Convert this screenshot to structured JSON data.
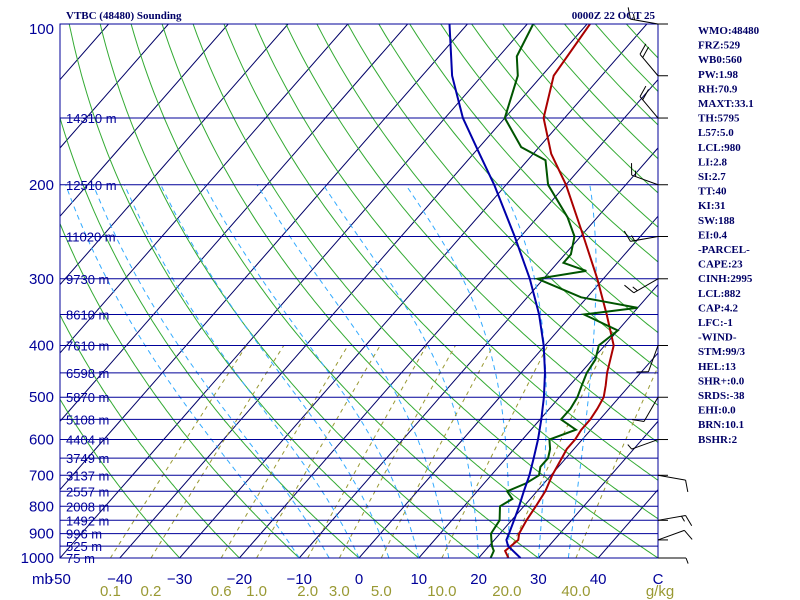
{
  "header": {
    "station": "VTBC (48480) Sounding",
    "time": "0000Z 22 OCT 25"
  },
  "indices": [
    "WMO:48480",
    "FRZ:529",
    "WB0:560",
    "PW:1.98",
    "RH:70.9",
    "MAXT:33.1",
    "TH:5795",
    "L57:5.0",
    "LCL:980",
    "LI:2.8",
    "SI:2.7",
    "TT:40",
    "KI:31",
    "SW:188",
    "EI:0.4",
    "-PARCEL-",
    "CAPE:23",
    "CINH:2995",
    "LCL:882",
    "CAP:4.2",
    "LFC:-1",
    "-WIND-",
    "STM:99/3",
    "HEL:13",
    "SHR+:0.0",
    "SRDS:-38",
    "EHI:0.0",
    "BRN:10.1",
    "BSHR:2"
  ],
  "colors": {
    "frame": "#000099",
    "isobar": "#000099",
    "isotherm": "#000066",
    "dry_adiabat": "#33aa33",
    "moist_adiabat": "#33aaff",
    "mixing_ratio": "#999933",
    "temperature": "#aa0000",
    "dewpoint": "#005500",
    "parcel": "#0000aa",
    "wind": "#000000"
  },
  "chart_data": {
    "type": "line",
    "title": "VTBC (48480) Sounding 0000Z 22 OCT 25",
    "skew_factor": 0.9,
    "pressure_range": [
      1000,
      100
    ],
    "temp_range": [
      -50,
      50
    ],
    "pressure_labels": [
      {
        "p": 100,
        "label": "100"
      },
      {
        "p": 200,
        "label": "200"
      },
      {
        "p": 300,
        "label": "300"
      },
      {
        "p": 400,
        "label": "400"
      },
      {
        "p": 500,
        "label": "500"
      },
      {
        "p": 600,
        "label": "600"
      },
      {
        "p": 700,
        "label": "700"
      },
      {
        "p": 800,
        "label": "800"
      },
      {
        "p": 900,
        "label": "900"
      },
      {
        "p": 1000,
        "label": "1000"
      }
    ],
    "heights": [
      {
        "p": 150,
        "label": "14310 m"
      },
      {
        "p": 200,
        "label": "12510 m"
      },
      {
        "p": 250,
        "label": "11020 m"
      },
      {
        "p": 300,
        "label": "9730 m"
      },
      {
        "p": 350,
        "label": "8610 m"
      },
      {
        "p": 400,
        "label": "7610 m"
      },
      {
        "p": 450,
        "label": "6598 m"
      },
      {
        "p": 500,
        "label": "5870 m"
      },
      {
        "p": 550,
        "label": "5108 m"
      },
      {
        "p": 600,
        "label": "4404 m"
      },
      {
        "p": 650,
        "label": "3749 m"
      },
      {
        "p": 700,
        "label": "3137 m"
      },
      {
        "p": 750,
        "label": "2557 m"
      },
      {
        "p": 800,
        "label": "2008 m"
      },
      {
        "p": 850,
        "label": "1492 m"
      },
      {
        "p": 900,
        "label": "996 m"
      },
      {
        "p": 950,
        "label": "525 m"
      },
      {
        "p": 1000,
        "label": "75 m"
      }
    ],
    "xlabel_unit": "mb",
    "temp_ticks": [
      {
        "t": -50,
        "label": "-50"
      },
      {
        "t": -40,
        "label": "−40"
      },
      {
        "t": -30,
        "label": "−30"
      },
      {
        "t": -20,
        "label": "−20"
      },
      {
        "t": -10,
        "label": "−10"
      },
      {
        "t": 0,
        "label": "0"
      },
      {
        "t": 10,
        "label": "10"
      },
      {
        "t": 20,
        "label": "20"
      },
      {
        "t": 30,
        "label": "30"
      },
      {
        "t": 40,
        "label": "40"
      },
      {
        "t": 50,
        "label": "C"
      }
    ],
    "mixing_ratio_unit": "g/kg",
    "mixing_ratios": [
      {
        "w": 0.1,
        "label": "0.1"
      },
      {
        "w": 0.2,
        "label": "0.2"
      },
      {
        "w": 0.6,
        "label": "0.6"
      },
      {
        "w": 1.0,
        "label": "1.0"
      },
      {
        "w": 2.0,
        "label": "2.0"
      },
      {
        "w": 3.0,
        "label": "3.0"
      },
      {
        "w": 5.0,
        "label": "5.0"
      },
      {
        "w": 10.0,
        "label": "10.0"
      },
      {
        "w": 20.0,
        "label": "20.0"
      },
      {
        "w": 40.0,
        "label": "40.0"
      }
    ],
    "series": [
      {
        "name": "Temperature",
        "points": [
          [
            1000,
            25
          ],
          [
            970,
            23.4
          ],
          [
            925,
            24
          ],
          [
            900,
            23.2
          ],
          [
            850,
            22.5
          ],
          [
            800,
            22
          ],
          [
            750,
            21.4
          ],
          [
            700,
            20.2
          ],
          [
            650,
            19.3
          ],
          [
            625,
            18.8
          ],
          [
            600,
            18.8
          ],
          [
            575,
            18.4
          ],
          [
            550,
            18.4
          ],
          [
            525,
            18
          ],
          [
            500,
            17.4
          ],
          [
            475,
            16
          ],
          [
            450,
            14.4
          ],
          [
            400,
            11.5
          ],
          [
            350,
            5.8
          ],
          [
            300,
            -1
          ],
          [
            250,
            -9.5
          ],
          [
            200,
            -20
          ],
          [
            175,
            -27
          ],
          [
            150,
            -33.5
          ],
          [
            125,
            -38
          ],
          [
            100,
            -39.5
          ]
        ]
      },
      {
        "name": "Dewpoint",
        "points": [
          [
            1000,
            22
          ],
          [
            970,
            21.5
          ],
          [
            950,
            20.5
          ],
          [
            925,
            19.5
          ],
          [
            900,
            18.5
          ],
          [
            850,
            18
          ],
          [
            800,
            16
          ],
          [
            775,
            17
          ],
          [
            750,
            15
          ],
          [
            725,
            17
          ],
          [
            700,
            18
          ],
          [
            675,
            17
          ],
          [
            650,
            17
          ],
          [
            625,
            16
          ],
          [
            600,
            14.5
          ],
          [
            575,
            17.5
          ],
          [
            550,
            13.5
          ],
          [
            525,
            13.5
          ],
          [
            500,
            13
          ],
          [
            475,
            12
          ],
          [
            450,
            11
          ],
          [
            425,
            10.5
          ],
          [
            400,
            9
          ],
          [
            375,
            10
          ],
          [
            350,
            2
          ],
          [
            340,
            10
          ],
          [
            325,
            -1
          ],
          [
            300,
            -11
          ],
          [
            290,
            -4
          ],
          [
            280,
            -9
          ],
          [
            270,
            -9
          ],
          [
            250,
            -11
          ],
          [
            230,
            -15
          ],
          [
            200,
            -23
          ],
          [
            180,
            -27
          ],
          [
            170,
            -33
          ],
          [
            150,
            -40
          ],
          [
            125,
            -44
          ],
          [
            115,
            -47
          ],
          [
            100,
            -49
          ]
        ]
      },
      {
        "name": "Parcel",
        "points": [
          [
            1000,
            27
          ],
          [
            950,
            23.2
          ],
          [
            925,
            22
          ],
          [
            900,
            21.5
          ],
          [
            850,
            20.4
          ],
          [
            800,
            19.2
          ],
          [
            750,
            17.8
          ],
          [
            700,
            16.4
          ],
          [
            650,
            14.6
          ],
          [
            600,
            12.6
          ],
          [
            550,
            10.2
          ],
          [
            500,
            7.4
          ],
          [
            450,
            4.0
          ],
          [
            400,
            -0.2
          ],
          [
            350,
            -5.5
          ],
          [
            300,
            -12.3
          ],
          [
            250,
            -21.0
          ],
          [
            200,
            -32.0
          ],
          [
            175,
            -39.0
          ],
          [
            150,
            -47.0
          ],
          [
            125,
            -55.0
          ],
          [
            100,
            -63.0
          ]
        ]
      }
    ],
    "wind_barbs": [
      {
        "p": 1000,
        "dir": 90,
        "kt": 5
      },
      {
        "p": 925,
        "dir": 70,
        "kt": 10
      },
      {
        "p": 850,
        "dir": 80,
        "kt": 15
      },
      {
        "p": 700,
        "dir": 100,
        "kt": 10
      },
      {
        "p": 600,
        "dir": 250,
        "kt": 5
      },
      {
        "p": 500,
        "dir": 210,
        "kt": 10
      },
      {
        "p": 400,
        "dir": 200,
        "kt": 10
      },
      {
        "p": 300,
        "dir": 240,
        "kt": 15
      },
      {
        "p": 250,
        "dir": 260,
        "kt": 15
      },
      {
        "p": 200,
        "dir": 290,
        "kt": 15
      },
      {
        "p": 150,
        "dir": 320,
        "kt": 20
      },
      {
        "p": 125,
        "dir": 320,
        "kt": 20
      },
      {
        "p": 100,
        "dir": 280,
        "kt": 15
      }
    ]
  }
}
